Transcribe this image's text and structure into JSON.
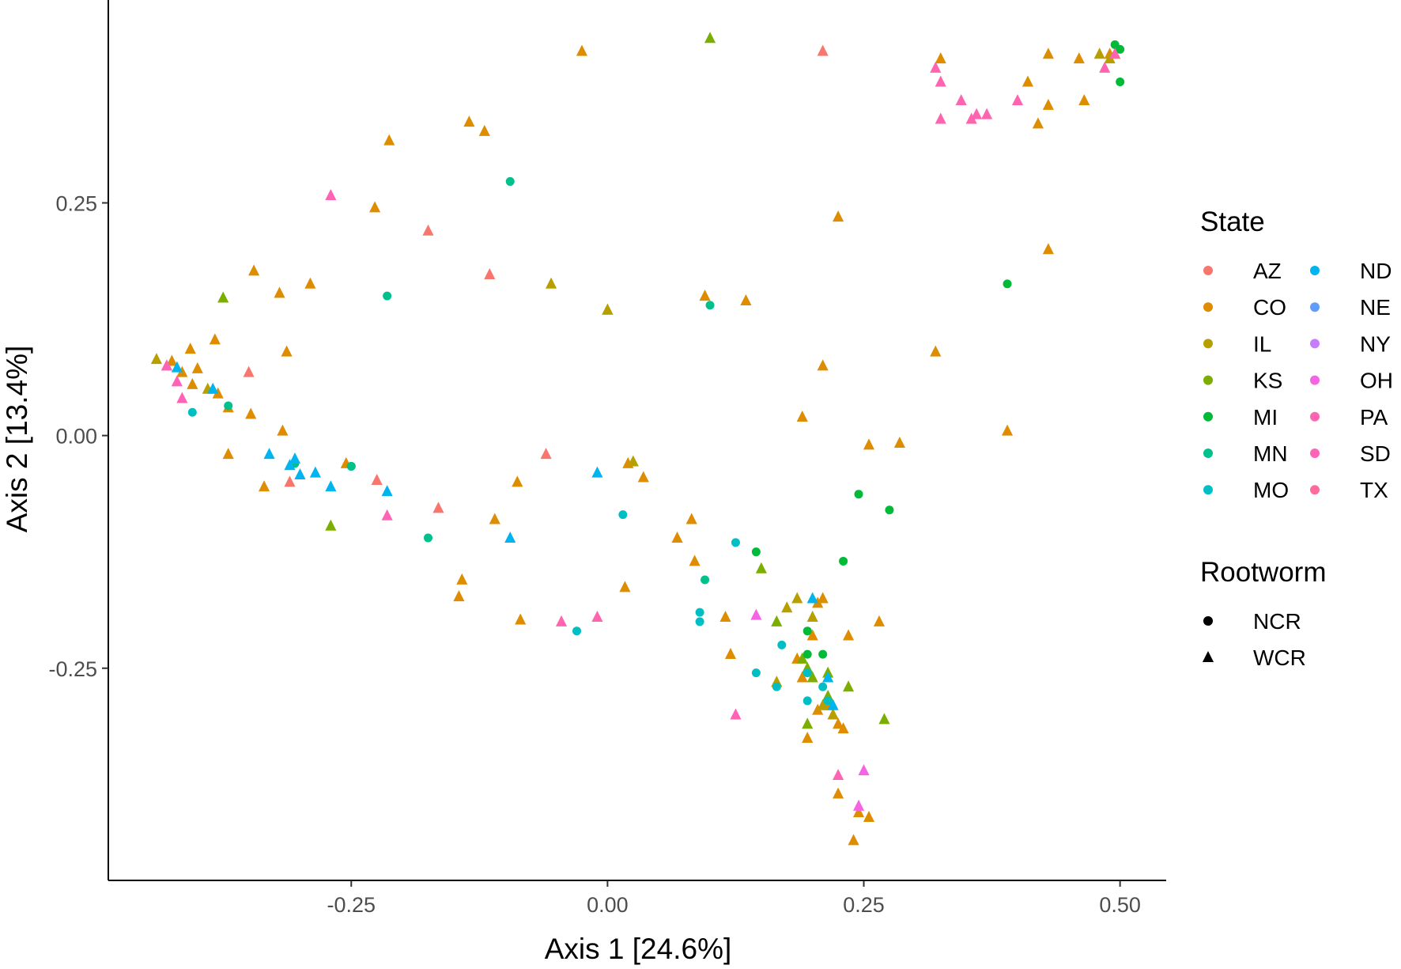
{
  "chart_data": {
    "type": "scatter",
    "xlabel": "Axis 1 [24.6%]",
    "ylabel": "Axis 2 [13.4%]",
    "xlim": [
      -0.487,
      0.545
    ],
    "ylim": [
      -0.478,
      0.468
    ],
    "x_ticks": [
      {
        "value": -0.25,
        "label": "-0.25"
      },
      {
        "value": 0.0,
        "label": "0.00"
      },
      {
        "value": 0.25,
        "label": "0.25"
      },
      {
        "value": 0.5,
        "label": "0.50"
      }
    ],
    "y_ticks": [
      {
        "value": 0.25,
        "label": "0.25"
      },
      {
        "value": 0.0,
        "label": "0.00"
      },
      {
        "value": -0.25,
        "label": "-0.25"
      }
    ],
    "grid": false,
    "legend_position": "right",
    "legend": {
      "color_title": "State",
      "shape_title": "Rootworm",
      "states": [
        {
          "name": "AZ",
          "color": "#F8766D"
        },
        {
          "name": "CO",
          "color": "#DB8E00"
        },
        {
          "name": "IL",
          "color": "#AEA200"
        },
        {
          "name": "KS",
          "color": "#64B200"
        },
        {
          "name": "MI",
          "color": "#00BD5C"
        },
        {
          "name": "MN",
          "color": "#00C1A7"
        },
        {
          "name": "MO",
          "color": "#00BADE"
        },
        {
          "name": "ND",
          "color": "#00A6FF"
        },
        {
          "name": "NE",
          "color": "#B385FF"
        },
        {
          "name": "NY",
          "color": "#EF67EB"
        },
        {
          "name": "OH",
          "color": "#FF63B6"
        },
        {
          "name": "PA",
          "color": "#FF6B9C"
        },
        {
          "name": "SD",
          "color": "#FF63B6"
        },
        {
          "name": "TX",
          "color": "#FF6B9C"
        }
      ],
      "state_colors": {
        "AZ": "#f8766d",
        "CO": "#de8c00",
        "IL": "#b79f00",
        "KS": "#7cae00",
        "MI": "#00ba38",
        "MN": "#00c08b",
        "MO": "#00bfc4",
        "ND": "#00b4f0",
        "NE": "#619cff",
        "NY": "#c77cff",
        "OH": "#f564e3",
        "PA": "#ff64b0"
      },
      "state_order": [
        "AZ",
        "CO",
        "IL",
        "KS",
        "MI",
        "MN",
        "MO",
        "ND",
        "NE",
        "NY",
        "OH",
        "PA",
        "SD",
        "TX"
      ],
      "shapes": [
        {
          "name": "NCR",
          "shape": "circle"
        },
        {
          "name": "WCR",
          "shape": "triangle"
        }
      ]
    },
    "series": [
      {
        "name": "CO",
        "shape": "WCR",
        "points": [
          [
            -0.025,
            0.413
          ],
          [
            -0.135,
            0.337
          ],
          [
            -0.12,
            0.327
          ],
          [
            -0.213,
            0.317
          ],
          [
            -0.227,
            0.245
          ],
          [
            -0.345,
            0.177
          ],
          [
            -0.32,
            0.153
          ],
          [
            -0.29,
            0.163
          ],
          [
            -0.383,
            0.103
          ],
          [
            -0.407,
            0.093
          ],
          [
            -0.425,
            0.08
          ],
          [
            -0.415,
            0.068
          ],
          [
            -0.4,
            0.072
          ],
          [
            -0.38,
            0.045
          ],
          [
            -0.37,
            0.03
          ],
          [
            -0.348,
            0.023
          ],
          [
            -0.405,
            0.055
          ],
          [
            -0.313,
            0.09
          ],
          [
            -0.317,
            0.005
          ],
          [
            -0.37,
            -0.02
          ],
          [
            -0.335,
            -0.055
          ],
          [
            -0.255,
            -0.03
          ],
          [
            -0.088,
            -0.05
          ],
          [
            -0.11,
            -0.09
          ],
          [
            -0.142,
            -0.155
          ],
          [
            -0.145,
            -0.173
          ],
          [
            -0.085,
            -0.198
          ],
          [
            0.017,
            -0.163
          ],
          [
            0.02,
            -0.03
          ],
          [
            0.035,
            -0.045
          ],
          [
            0.068,
            -0.11
          ],
          [
            0.082,
            -0.09
          ],
          [
            0.085,
            -0.135
          ],
          [
            0.115,
            -0.195
          ],
          [
            0.12,
            -0.235
          ],
          [
            0.135,
            0.145
          ],
          [
            0.095,
            0.15
          ],
          [
            0.19,
            0.02
          ],
          [
            0.205,
            -0.18
          ],
          [
            0.2,
            -0.215
          ],
          [
            0.21,
            -0.175
          ],
          [
            0.205,
            -0.295
          ],
          [
            0.215,
            -0.29
          ],
          [
            0.22,
            -0.3
          ],
          [
            0.225,
            -0.31
          ],
          [
            0.23,
            -0.315
          ],
          [
            0.235,
            -0.215
          ],
          [
            0.265,
            -0.2
          ],
          [
            0.255,
            -0.01
          ],
          [
            0.285,
            -0.008
          ],
          [
            0.32,
            0.09
          ],
          [
            0.325,
            0.405
          ],
          [
            0.41,
            0.38
          ],
          [
            0.43,
            0.41
          ],
          [
            0.46,
            0.405
          ],
          [
            0.42,
            0.335
          ],
          [
            0.43,
            0.355
          ],
          [
            0.465,
            0.36
          ],
          [
            0.49,
            0.41
          ],
          [
            0.43,
            0.2
          ],
          [
            0.225,
            -0.385
          ],
          [
            0.245,
            -0.405
          ],
          [
            0.255,
            -0.41
          ],
          [
            0.24,
            -0.435
          ],
          [
            0.195,
            -0.325
          ],
          [
            0.185,
            -0.24
          ],
          [
            0.19,
            -0.26
          ],
          [
            0.165,
            -0.265
          ],
          [
            0.21,
            0.075
          ],
          [
            0.0,
            0.135
          ],
          [
            0.225,
            0.235
          ],
          [
            0.39,
            0.005
          ]
        ]
      },
      {
        "name": "AZ",
        "shape": "WCR",
        "points": [
          [
            0.21,
            0.413
          ],
          [
            -0.175,
            0.22
          ],
          [
            -0.115,
            0.173
          ],
          [
            -0.35,
            0.068
          ],
          [
            -0.31,
            -0.05
          ],
          [
            -0.225,
            -0.048
          ],
          [
            -0.06,
            -0.02
          ],
          [
            -0.165,
            -0.078
          ],
          [
            -0.43,
            0.075
          ]
        ]
      },
      {
        "name": "IL",
        "shape": "WCR",
        "points": [
          [
            -0.055,
            0.163
          ],
          [
            0.0,
            0.135
          ],
          [
            0.025,
            -0.028
          ],
          [
            0.185,
            -0.175
          ],
          [
            0.175,
            -0.185
          ],
          [
            0.2,
            -0.195
          ],
          [
            0.165,
            -0.265
          ],
          [
            0.21,
            -0.29
          ],
          [
            0.22,
            -0.3
          ],
          [
            -0.39,
            0.05
          ],
          [
            -0.44,
            0.082
          ],
          [
            0.48,
            0.41
          ],
          [
            0.49,
            0.405
          ],
          [
            0.495,
            0.41
          ]
        ]
      },
      {
        "name": "KS",
        "shape": "WCR",
        "points": [
          [
            0.1,
            0.427
          ],
          [
            -0.375,
            0.148
          ],
          [
            -0.27,
            -0.097
          ],
          [
            0.15,
            -0.143
          ],
          [
            0.165,
            -0.2
          ],
          [
            0.19,
            -0.24
          ],
          [
            0.195,
            -0.25
          ],
          [
            0.2,
            -0.26
          ],
          [
            0.215,
            -0.255
          ],
          [
            0.235,
            -0.27
          ],
          [
            0.215,
            -0.28
          ],
          [
            0.195,
            -0.31
          ],
          [
            0.27,
            -0.305
          ]
        ]
      },
      {
        "name": "MI",
        "shape": "NCR",
        "points": [
          [
            -0.25,
            -0.033
          ],
          [
            0.145,
            -0.125
          ],
          [
            0.23,
            -0.135
          ],
          [
            0.245,
            -0.063
          ],
          [
            0.275,
            -0.08
          ],
          [
            0.39,
            0.163
          ],
          [
            0.5,
            0.415
          ],
          [
            0.495,
            0.42
          ],
          [
            0.5,
            0.38
          ],
          [
            0.195,
            -0.21
          ],
          [
            0.21,
            -0.235
          ],
          [
            0.195,
            -0.235
          ]
        ]
      },
      {
        "name": "MN",
        "shape": "NCR",
        "points": [
          [
            -0.095,
            0.273
          ],
          [
            -0.215,
            0.15
          ],
          [
            0.1,
            0.14
          ],
          [
            -0.37,
            0.032
          ],
          [
            -0.305,
            -0.03
          ],
          [
            0.095,
            -0.155
          ],
          [
            -0.175,
            -0.11
          ],
          [
            -0.25,
            -0.033
          ]
        ]
      },
      {
        "name": "MO",
        "shape": "NCR",
        "points": [
          [
            -0.405,
            0.025
          ],
          [
            0.015,
            -0.085
          ],
          [
            0.125,
            -0.115
          ],
          [
            0.09,
            -0.19
          ],
          [
            0.09,
            -0.2
          ],
          [
            -0.03,
            -0.21
          ],
          [
            0.17,
            -0.225
          ],
          [
            0.195,
            -0.255
          ],
          [
            0.145,
            -0.255
          ],
          [
            0.165,
            -0.27
          ],
          [
            0.21,
            -0.27
          ],
          [
            0.195,
            -0.285
          ],
          [
            0.215,
            -0.285
          ]
        ]
      },
      {
        "name": "ND",
        "shape": "WCR",
        "points": [
          [
            -0.385,
            0.05
          ],
          [
            -0.42,
            0.073
          ],
          [
            -0.33,
            -0.02
          ],
          [
            -0.305,
            -0.025
          ],
          [
            -0.31,
            -0.032
          ],
          [
            -0.3,
            -0.042
          ],
          [
            -0.285,
            -0.04
          ],
          [
            -0.27,
            -0.055
          ],
          [
            -0.215,
            -0.06
          ],
          [
            -0.095,
            -0.11
          ],
          [
            -0.01,
            -0.04
          ],
          [
            0.2,
            -0.175
          ],
          [
            0.215,
            -0.26
          ],
          [
            0.22,
            -0.29
          ]
        ]
      },
      {
        "name": "OH",
        "shape": "WCR",
        "points": [
          [
            0.145,
            -0.193
          ],
          [
            0.25,
            -0.36
          ],
          [
            0.245,
            -0.398
          ]
        ]
      },
      {
        "name": "PA",
        "shape": "WCR",
        "points": [
          [
            0.32,
            0.395
          ],
          [
            0.325,
            0.38
          ],
          [
            0.345,
            0.36
          ],
          [
            0.325,
            0.34
          ],
          [
            0.355,
            0.34
          ],
          [
            0.36,
            0.345
          ],
          [
            0.37,
            0.345
          ],
          [
            0.4,
            0.36
          ],
          [
            0.485,
            0.395
          ],
          [
            0.495,
            0.41
          ],
          [
            -0.045,
            -0.2
          ],
          [
            -0.01,
            -0.195
          ]
        ]
      },
      {
        "name": "SD",
        "shape": "WCR",
        "points": [
          [
            -0.27,
            0.258
          ],
          [
            -0.42,
            0.058
          ],
          [
            -0.415,
            0.04
          ],
          [
            -0.43,
            0.075
          ],
          [
            -0.215,
            -0.086
          ],
          [
            0.125,
            -0.3
          ],
          [
            0.225,
            -0.365
          ]
        ]
      }
    ]
  }
}
